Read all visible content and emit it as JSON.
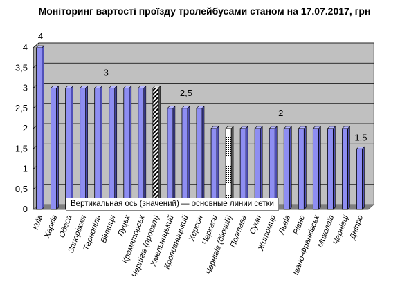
{
  "title": "Моніторинг вартості проїзду тролейбусами станом на 17.07.2017, грн",
  "tooltip": "Вертикальная ось (значений)  — основные линии сетки",
  "colors": {
    "bar": "#8e8ef2",
    "bar_side": "#5050b8",
    "bar_top": "#b8b8ff",
    "wall": "#c0c0c0",
    "floor": "#7f7f7f",
    "grid": "#000000"
  },
  "chart_data": {
    "type": "bar",
    "title": "Моніторинг вартості проїзду тролейбусами станом на 17.07.2017, грн",
    "xlabel": "",
    "ylabel": "",
    "ylim": [
      0,
      4
    ],
    "yticks": [
      "0",
      "0,5",
      "1",
      "1,5",
      "2",
      "2,5",
      "3",
      "3,5",
      "4"
    ],
    "grid": true,
    "legend": "none",
    "categories": [
      "Київ",
      "Харків",
      "Одеса",
      "Запоріжжя",
      "Тернопіль",
      "Вінниця",
      "Луцьк",
      "Краматорськ",
      "Чернігів (проект)",
      "Хмельницький",
      "Кропивницький",
      "Херсон",
      "Черкаси",
      "Чернігів (діючий)",
      "Полтава",
      "Суми",
      "Житомир",
      "Львів",
      "Рівне",
      "Івано-Франківськ",
      "Миколаїв",
      "Чернівці",
      "Дніпро"
    ],
    "values": [
      4,
      3,
      3,
      3,
      3,
      3,
      3,
      3,
      3,
      2.5,
      2.5,
      2.5,
      2,
      2,
      2,
      2,
      2,
      2,
      2,
      2,
      2,
      2,
      1.5
    ],
    "bar_styles": [
      "solid",
      "solid",
      "solid",
      "solid",
      "solid",
      "solid",
      "solid",
      "solid",
      "hatched",
      "solid",
      "solid",
      "solid",
      "solid",
      "dotted",
      "solid",
      "solid",
      "solid",
      "solid",
      "solid",
      "solid",
      "solid",
      "solid",
      "solid"
    ],
    "annotations": [
      {
        "text": "4",
        "value": 4
      },
      {
        "text": "3",
        "value": 3
      },
      {
        "text": "2,5",
        "value": 2.5
      },
      {
        "text": "2",
        "value": 2
      },
      {
        "text": "1,5",
        "value": 1.5
      }
    ]
  }
}
